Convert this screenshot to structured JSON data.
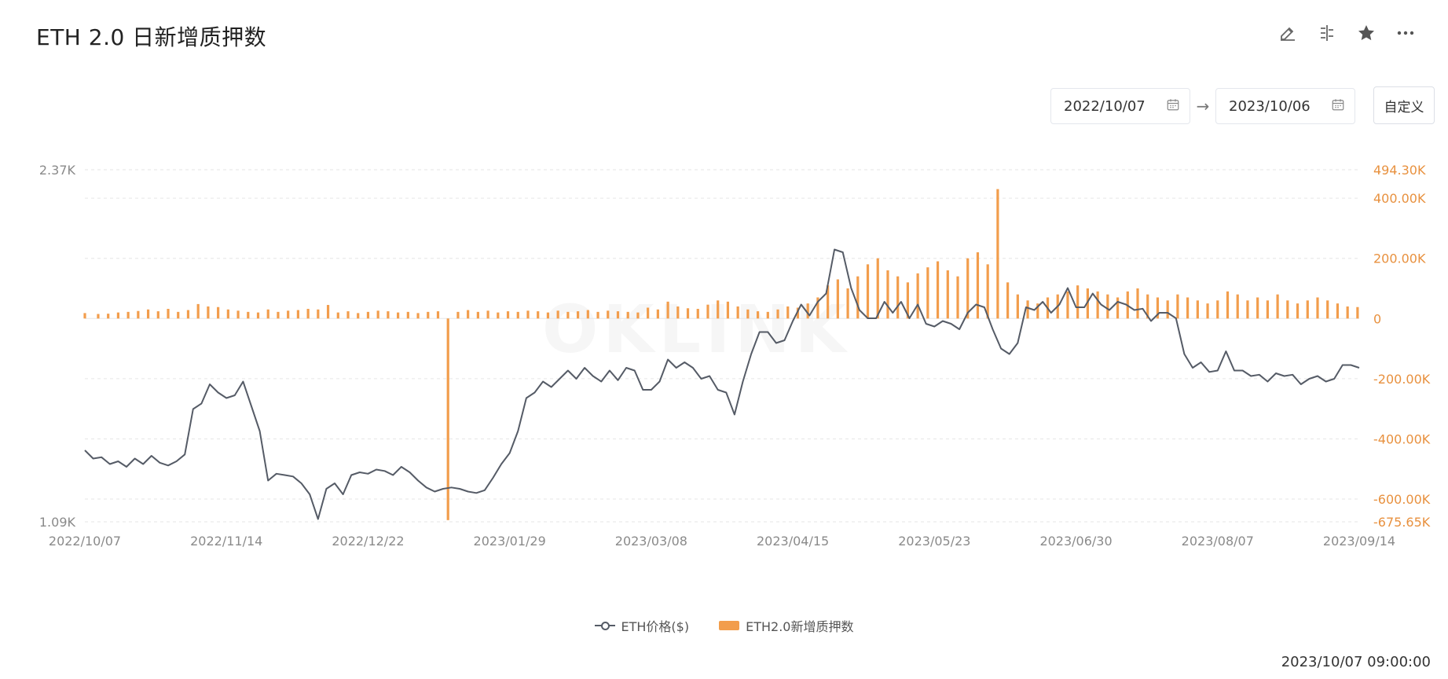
{
  "header": {
    "title": "ETH 2.0 日新增质押数",
    "tool_icons": [
      "edit-icon",
      "compare-icon",
      "star-icon",
      "more-icon"
    ]
  },
  "date_range": {
    "start": "2022/10/07",
    "end": "2023/10/06",
    "custom_label": "自定义"
  },
  "footer": {
    "timestamp": "2023/10/07 09:00:00"
  },
  "colors": {
    "price_line": "#555b66",
    "bars": "#f29d4c",
    "grid": "#e6e6e6",
    "right_axis_text": "#e8913f",
    "left_axis_text": "#8a8a8a"
  },
  "chart_data": {
    "type": "bar+line",
    "title": "ETH 2.0 日新增质押数",
    "x_tick_labels": [
      "2022/10/07",
      "2022/11/14",
      "2022/12/22",
      "2023/01/29",
      "2023/03/08",
      "2023/04/15",
      "2023/05/23",
      "2023/06/30",
      "2023/08/07",
      "2023/09/14"
    ],
    "y_left": {
      "min": 1090,
      "max": 2370,
      "tick_labels": [
        "2.37K",
        "1.09K"
      ]
    },
    "y_right": {
      "min": -675650,
      "max": 494300,
      "tick_labels": [
        "494.30K",
        "400.00K",
        "200.00K",
        "0",
        "-200.00K",
        "-400.00K",
        "-600.00K",
        "-675.65K"
      ]
    },
    "grid": true,
    "legend_position": "bottom-center",
    "series": [
      {
        "name": "ETH价格($)",
        "type": "line",
        "axis": "left",
        "points": [
          [
            0,
            1350
          ],
          [
            5,
            1320
          ],
          [
            10,
            1325
          ],
          [
            15,
            1300
          ],
          [
            20,
            1310
          ],
          [
            25,
            1290
          ],
          [
            30,
            1320
          ],
          [
            35,
            1300
          ],
          [
            40,
            1330
          ],
          [
            45,
            1305
          ],
          [
            50,
            1295
          ],
          [
            55,
            1310
          ],
          [
            60,
            1335
          ],
          [
            65,
            1500
          ],
          [
            70,
            1520
          ],
          [
            75,
            1590
          ],
          [
            80,
            1560
          ],
          [
            85,
            1540
          ],
          [
            90,
            1550
          ],
          [
            95,
            1600
          ],
          [
            100,
            1510
          ],
          [
            105,
            1420
          ],
          [
            110,
            1240
          ],
          [
            115,
            1265
          ],
          [
            120,
            1260
          ],
          [
            125,
            1255
          ],
          [
            130,
            1230
          ],
          [
            135,
            1190
          ],
          [
            140,
            1100
          ],
          [
            145,
            1210
          ],
          [
            150,
            1230
          ],
          [
            155,
            1190
          ],
          [
            160,
            1260
          ],
          [
            165,
            1270
          ],
          [
            170,
            1265
          ],
          [
            175,
            1280
          ],
          [
            180,
            1275
          ],
          [
            185,
            1260
          ],
          [
            190,
            1290
          ],
          [
            195,
            1270
          ],
          [
            200,
            1240
          ],
          [
            205,
            1215
          ],
          [
            210,
            1200
          ],
          [
            215,
            1210
          ],
          [
            220,
            1215
          ],
          [
            225,
            1210
          ],
          [
            230,
            1200
          ],
          [
            235,
            1195
          ],
          [
            240,
            1205
          ],
          [
            245,
            1250
          ],
          [
            250,
            1300
          ],
          [
            255,
            1340
          ],
          [
            260,
            1420
          ],
          [
            265,
            1540
          ],
          [
            270,
            1560
          ],
          [
            275,
            1600
          ],
          [
            280,
            1580
          ],
          [
            285,
            1610
          ],
          [
            290,
            1640
          ],
          [
            295,
            1610
          ],
          [
            300,
            1650
          ],
          [
            305,
            1620
          ],
          [
            310,
            1600
          ],
          [
            315,
            1640
          ],
          [
            320,
            1605
          ],
          [
            325,
            1650
          ],
          [
            330,
            1640
          ],
          [
            335,
            1570
          ],
          [
            340,
            1570
          ],
          [
            345,
            1600
          ],
          [
            350,
            1680
          ],
          [
            355,
            1650
          ],
          [
            360,
            1670
          ],
          [
            365,
            1650
          ],
          [
            370,
            1610
          ],
          [
            375,
            1620
          ],
          [
            380,
            1570
          ],
          [
            385,
            1560
          ],
          [
            390,
            1480
          ],
          [
            395,
            1600
          ],
          [
            400,
            1700
          ],
          [
            405,
            1780
          ],
          [
            410,
            1780
          ],
          [
            415,
            1740
          ],
          [
            420,
            1750
          ],
          [
            425,
            1820
          ],
          [
            430,
            1880
          ],
          [
            435,
            1840
          ],
          [
            440,
            1890
          ],
          [
            445,
            1920
          ],
          [
            450,
            2080
          ],
          [
            455,
            2070
          ],
          [
            460,
            1940
          ],
          [
            465,
            1860
          ],
          [
            470,
            1830
          ],
          [
            475,
            1830
          ],
          [
            480,
            1890
          ],
          [
            485,
            1850
          ],
          [
            490,
            1890
          ],
          [
            495,
            1830
          ],
          [
            500,
            1880
          ],
          [
            505,
            1810
          ],
          [
            510,
            1800
          ],
          [
            515,
            1820
          ],
          [
            520,
            1810
          ],
          [
            525,
            1790
          ],
          [
            530,
            1850
          ],
          [
            535,
            1880
          ],
          [
            540,
            1870
          ],
          [
            545,
            1790
          ],
          [
            550,
            1720
          ],
          [
            555,
            1700
          ],
          [
            560,
            1740
          ],
          [
            565,
            1870
          ],
          [
            570,
            1860
          ],
          [
            575,
            1890
          ],
          [
            580,
            1850
          ],
          [
            585,
            1880
          ],
          [
            590,
            1940
          ],
          [
            595,
            1870
          ],
          [
            600,
            1870
          ],
          [
            605,
            1920
          ],
          [
            610,
            1880
          ],
          [
            615,
            1860
          ],
          [
            620,
            1890
          ],
          [
            625,
            1880
          ],
          [
            630,
            1860
          ],
          [
            635,
            1865
          ],
          [
            640,
            1820
          ],
          [
            645,
            1850
          ],
          [
            650,
            1850
          ],
          [
            655,
            1830
          ],
          [
            660,
            1700
          ],
          [
            665,
            1650
          ],
          [
            670,
            1670
          ],
          [
            675,
            1635
          ],
          [
            680,
            1640
          ],
          [
            685,
            1710
          ],
          [
            690,
            1640
          ],
          [
            695,
            1640
          ],
          [
            700,
            1620
          ],
          [
            705,
            1625
          ],
          [
            710,
            1600
          ],
          [
            715,
            1630
          ],
          [
            720,
            1620
          ],
          [
            725,
            1625
          ],
          [
            730,
            1590
          ],
          [
            735,
            1610
          ],
          [
            740,
            1620
          ],
          [
            745,
            1600
          ],
          [
            750,
            1610
          ],
          [
            755,
            1660
          ],
          [
            760,
            1660
          ],
          [
            765,
            1650
          ]
        ]
      },
      {
        "name": "ETH2.0新增质押数",
        "type": "bar",
        "axis": "right",
        "bars": [
          [
            0,
            18000
          ],
          [
            8,
            15000
          ],
          [
            14,
            16000
          ],
          [
            20,
            20000
          ],
          [
            26,
            22000
          ],
          [
            32,
            25000
          ],
          [
            38,
            30000
          ],
          [
            44,
            24000
          ],
          [
            50,
            32000
          ],
          [
            56,
            22000
          ],
          [
            62,
            28000
          ],
          [
            68,
            48000
          ],
          [
            74,
            40000
          ],
          [
            80,
            38000
          ],
          [
            86,
            30000
          ],
          [
            92,
            26000
          ],
          [
            98,
            22000
          ],
          [
            104,
            20000
          ],
          [
            110,
            30000
          ],
          [
            116,
            22000
          ],
          [
            122,
            26000
          ],
          [
            128,
            28000
          ],
          [
            134,
            32000
          ],
          [
            140,
            30000
          ],
          [
            146,
            45000
          ],
          [
            152,
            20000
          ],
          [
            158,
            24000
          ],
          [
            164,
            18000
          ],
          [
            170,
            22000
          ],
          [
            176,
            26000
          ],
          [
            182,
            24000
          ],
          [
            188,
            20000
          ],
          [
            194,
            22000
          ],
          [
            200,
            18000
          ],
          [
            206,
            22000
          ],
          [
            212,
            24000
          ],
          [
            218,
            -670000
          ],
          [
            224,
            22000
          ],
          [
            230,
            28000
          ],
          [
            236,
            22000
          ],
          [
            242,
            26000
          ],
          [
            248,
            20000
          ],
          [
            254,
            24000
          ],
          [
            260,
            22000
          ],
          [
            266,
            26000
          ],
          [
            272,
            24000
          ],
          [
            278,
            20000
          ],
          [
            284,
            26000
          ],
          [
            290,
            22000
          ],
          [
            296,
            24000
          ],
          [
            302,
            28000
          ],
          [
            308,
            22000
          ],
          [
            314,
            26000
          ],
          [
            320,
            24000
          ],
          [
            326,
            22000
          ],
          [
            332,
            20000
          ],
          [
            338,
            36000
          ],
          [
            344,
            30000
          ],
          [
            350,
            56000
          ],
          [
            356,
            40000
          ],
          [
            362,
            34000
          ],
          [
            368,
            32000
          ],
          [
            374,
            46000
          ],
          [
            380,
            60000
          ],
          [
            386,
            56000
          ],
          [
            392,
            40000
          ],
          [
            398,
            30000
          ],
          [
            404,
            24000
          ],
          [
            410,
            22000
          ],
          [
            416,
            30000
          ],
          [
            422,
            40000
          ],
          [
            428,
            36000
          ],
          [
            434,
            50000
          ],
          [
            440,
            70000
          ],
          [
            446,
            110000
          ],
          [
            452,
            130000
          ],
          [
            458,
            100000
          ],
          [
            464,
            140000
          ],
          [
            470,
            180000
          ],
          [
            476,
            200000
          ],
          [
            482,
            160000
          ],
          [
            488,
            140000
          ],
          [
            494,
            120000
          ],
          [
            500,
            150000
          ],
          [
            506,
            170000
          ],
          [
            512,
            190000
          ],
          [
            518,
            160000
          ],
          [
            524,
            140000
          ],
          [
            530,
            200000
          ],
          [
            536,
            220000
          ],
          [
            542,
            180000
          ],
          [
            548,
            430000
          ],
          [
            554,
            120000
          ],
          [
            560,
            80000
          ],
          [
            566,
            60000
          ],
          [
            572,
            50000
          ],
          [
            578,
            70000
          ],
          [
            584,
            80000
          ],
          [
            590,
            90000
          ],
          [
            596,
            110000
          ],
          [
            602,
            100000
          ],
          [
            608,
            90000
          ],
          [
            614,
            80000
          ],
          [
            620,
            70000
          ],
          [
            626,
            90000
          ],
          [
            632,
            100000
          ],
          [
            638,
            80000
          ],
          [
            644,
            70000
          ],
          [
            650,
            60000
          ],
          [
            656,
            80000
          ],
          [
            662,
            70000
          ],
          [
            668,
            60000
          ],
          [
            674,
            50000
          ],
          [
            680,
            60000
          ],
          [
            686,
            90000
          ],
          [
            692,
            80000
          ],
          [
            698,
            60000
          ],
          [
            704,
            70000
          ],
          [
            710,
            60000
          ],
          [
            716,
            80000
          ],
          [
            722,
            60000
          ],
          [
            728,
            50000
          ],
          [
            734,
            60000
          ],
          [
            740,
            70000
          ],
          [
            746,
            60000
          ],
          [
            752,
            50000
          ],
          [
            758,
            40000
          ],
          [
            764,
            38000
          ]
        ]
      }
    ]
  }
}
